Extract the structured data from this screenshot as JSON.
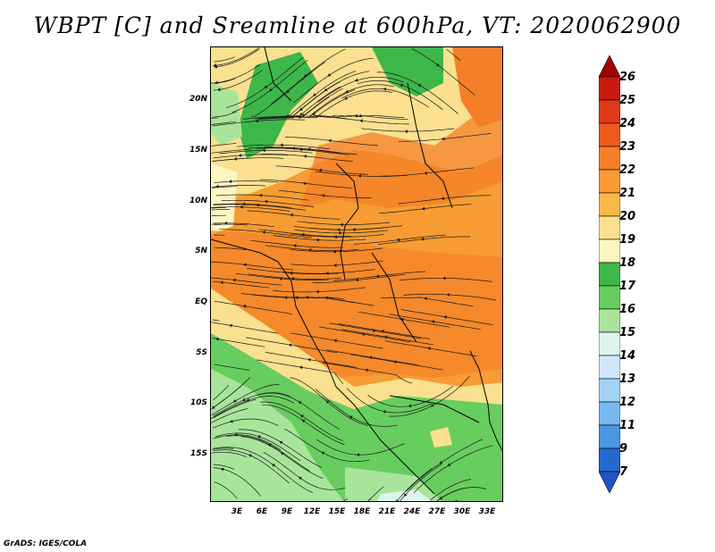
{
  "title": "WBPT [C] and Sreamline at 600hPa, VT: 2020062900",
  "footer": "GrADS: IGES/COLA",
  "lat_labels": [
    "20N",
    "15N",
    "10N",
    "5N",
    "EQ",
    "5S",
    "10S",
    "15S"
  ],
  "lon_labels": [
    "3E",
    "6E",
    "9E",
    "12E",
    "15E",
    "18E",
    "21E",
    "24E",
    "27E",
    "30E",
    "33E"
  ],
  "colorbar": {
    "labels": [
      "26",
      "25",
      "24",
      "23",
      "22",
      "21",
      "20",
      "19",
      "18",
      "17",
      "16",
      "15",
      "14",
      "13",
      "12",
      "11",
      "9",
      "7"
    ],
    "colors": [
      "#a50000",
      "#c81a10",
      "#e03a1a",
      "#ee5a1e",
      "#f47f28",
      "#f79c32",
      "#f9b94a",
      "#fbe08f",
      "#fdf6c0",
      "#3db74a",
      "#67cd5f",
      "#a8e59b",
      "#ddf5ee",
      "#cde8fb",
      "#a3d4f6",
      "#77b8ee",
      "#4a97e2",
      "#2568cf",
      "#1e55c4"
    ]
  },
  "map": {
    "lat_range": [
      -20,
      24
    ],
    "lon_range": [
      0,
      35
    ],
    "regions": [
      {
        "name": "sahel-green-north",
        "color": "#3db74a"
      },
      {
        "name": "sahara-yellow",
        "color": "#fdf6c0"
      },
      {
        "name": "central-orange",
        "color": "#f79c32"
      },
      {
        "name": "southern-green",
        "color": "#67cd5f"
      },
      {
        "name": "southern-light-green",
        "color": "#a8e59b"
      }
    ]
  }
}
